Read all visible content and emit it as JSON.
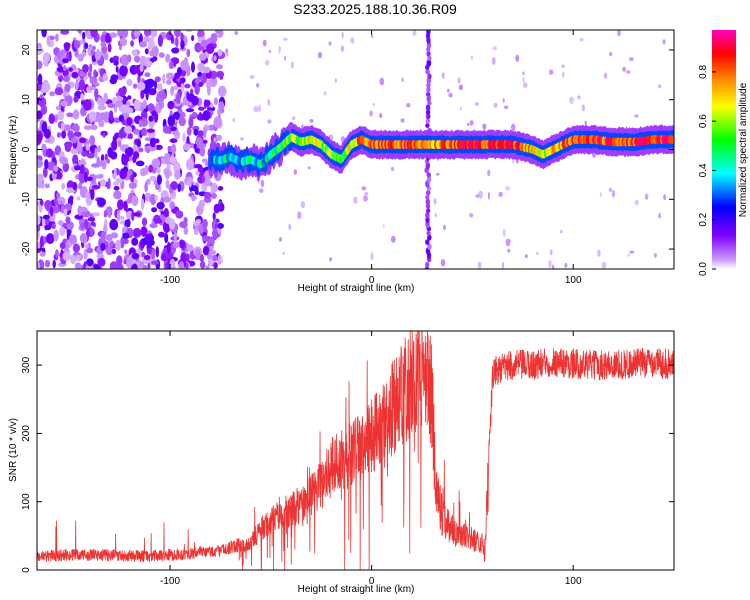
{
  "figure": {
    "title": "S233.2025.188.10.36.R09"
  },
  "chart_data": [
    {
      "type": "heatmap",
      "xlabel": "Height of straight line (km)",
      "ylabel": "Frequency (Hz)",
      "xlim": [
        -166,
        150
      ],
      "ylim": [
        -24,
        24
      ],
      "xticks": [
        -100,
        0,
        100
      ],
      "yticks": [
        -20,
        -10,
        0,
        10,
        20
      ],
      "grid": false,
      "colorbar": {
        "label": "Normalized spectral amplitude",
        "range": [
          0.0,
          0.97
        ],
        "ticks": [
          0.0,
          0.2,
          0.4,
          0.6,
          0.8
        ],
        "colormap": [
          "#ffffff",
          "#8000ff",
          "#0000ff",
          "#00ffff",
          "#00ff00",
          "#ffff00",
          "#ff8000",
          "#ff0000",
          "#ff00c0"
        ]
      },
      "ridge": {
        "description_units": "x in km, y in Hz, amplitude 0-1",
        "points": [
          [
            -80,
            -2.0,
            0.35
          ],
          [
            -75,
            -2.2,
            0.4
          ],
          [
            -70,
            -1.5,
            0.45
          ],
          [
            -65,
            -2.5,
            0.4
          ],
          [
            -60,
            -2.0,
            0.45
          ],
          [
            -55,
            -3.0,
            0.4
          ],
          [
            -50,
            -1.0,
            0.45
          ],
          [
            -45,
            0.5,
            0.5
          ],
          [
            -40,
            2.5,
            0.6
          ],
          [
            -35,
            1.5,
            0.55
          ],
          [
            -30,
            2.0,
            0.7
          ],
          [
            -25,
            1.0,
            0.65
          ],
          [
            -20,
            -1.0,
            0.55
          ],
          [
            -15,
            -2.0,
            0.5
          ],
          [
            -10,
            1.0,
            0.7
          ],
          [
            -5,
            2.0,
            0.8
          ],
          [
            0,
            1.0,
            0.85
          ],
          [
            10,
            1.0,
            0.85
          ],
          [
            20,
            1.0,
            0.85
          ],
          [
            28,
            1.0,
            0.75
          ],
          [
            40,
            1.0,
            0.85
          ],
          [
            50,
            1.0,
            0.9
          ],
          [
            60,
            1.0,
            0.85
          ],
          [
            70,
            1.0,
            0.9
          ],
          [
            80,
            0.0,
            0.7
          ],
          [
            85,
            -1.0,
            0.6
          ],
          [
            90,
            0.0,
            0.7
          ],
          [
            95,
            1.0,
            0.8
          ],
          [
            100,
            2.0,
            0.85
          ],
          [
            110,
            2.0,
            0.85
          ],
          [
            120,
            1.5,
            0.85
          ],
          [
            130,
            1.5,
            0.85
          ],
          [
            140,
            2.0,
            0.9
          ],
          [
            150,
            2.0,
            0.9
          ]
        ],
        "width_hz": 1.6
      },
      "noise_region_x": [
        -166,
        -80
      ],
      "vertical_streak_x": [
        28
      ]
    },
    {
      "type": "line",
      "xlabel": "Height of straight line (km)",
      "ylabel": "SNR (10 * v/v)",
      "xlim": [
        -166,
        150
      ],
      "ylim": [
        0,
        350
      ],
      "xticks": [
        -100,
        0,
        100
      ],
      "yticks": [
        0,
        100,
        200,
        300
      ],
      "grid": false,
      "color": "#ee3333",
      "series": [
        {
          "x": [
            -166,
            -150,
            -130,
            -110,
            -90,
            -75,
            -68,
            -60,
            -55,
            -50,
            -45,
            -40,
            -35,
            -30,
            -25,
            -20,
            -15,
            -10,
            -5,
            0,
            5,
            10,
            15,
            20,
            25,
            28,
            30,
            32,
            35,
            40,
            45,
            50,
            55,
            56,
            58,
            60,
            62,
            65,
            70,
            80,
            90,
            100,
            110,
            120,
            130,
            140,
            150
          ],
          "values": [
            20,
            22,
            22,
            20,
            24,
            28,
            35,
            40,
            60,
            70,
            85,
            90,
            95,
            110,
            125,
            150,
            160,
            170,
            180,
            195,
            215,
            235,
            255,
            275,
            290,
            295,
            240,
            120,
            80,
            60,
            50,
            45,
            40,
            10,
            150,
            285,
            292,
            295,
            300,
            300,
            305,
            302,
            300,
            300,
            302,
            305,
            300
          ]
        }
      ]
    }
  ]
}
